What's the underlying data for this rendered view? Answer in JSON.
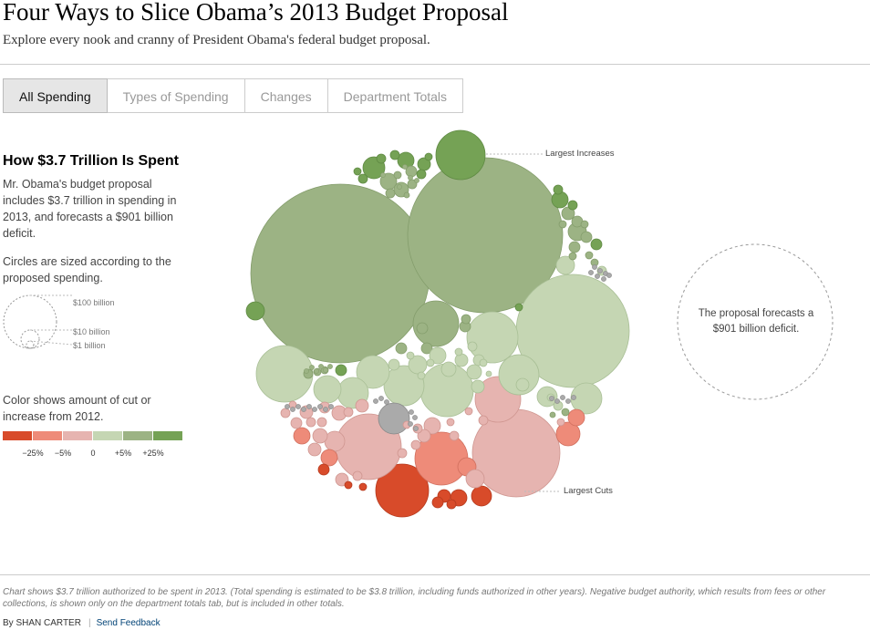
{
  "header": {
    "title": "Four Ways to Slice Obama’s 2013 Budget Proposal",
    "subtitle": "Explore every nook and cranny of President Obama's federal budget proposal."
  },
  "tabs": [
    {
      "label": "All Spending",
      "active": true
    },
    {
      "label": "Types of Spending",
      "active": false
    },
    {
      "label": "Changes",
      "active": false
    },
    {
      "label": "Department Totals",
      "active": false
    }
  ],
  "sidebar": {
    "heading": "How $3.7 Trillion Is Spent",
    "intro": "Mr. Obama's budget proposal includes $3.7 trillion in spending in 2013, and forecasts a $901 billion deficit.",
    "size_note": "Circles are sized according to the proposed spending.",
    "size_legend": [
      "$100 billion",
      "$10 billion",
      "$1 billion"
    ],
    "color_note": "Color shows amount of cut or increase from 2012.",
    "color_scale": [
      "#d84b2a",
      "#ee8b79",
      "#e6b4b0",
      "#c5d6b3",
      "#9cb384",
      "#75a255"
    ],
    "color_ticks": [
      "−25%",
      "−5%",
      "0",
      "+5%",
      "+25%"
    ]
  },
  "annotations": {
    "largest_increases": "Largest Increases",
    "largest_cuts": "Largest Cuts",
    "deficit": "The proposal forecasts a $901 billion deficit."
  },
  "footer": {
    "note": "Chart shows $3.7 trillion authorized to be spent in 2013. (Total spending is estimated to be $3.8 trillion, including funds authorized in other years). Negative budget authority, which results from fees or other collections, is shown only on the department totals tab, but is included in other totals.",
    "byline": "By SHAN CARTER",
    "feedback": "Send Feedback"
  },
  "colors": {
    "dark_green": "#75a255",
    "mid_green": "#9cb384",
    "light_green": "#c5d6b3",
    "light_red": "#e6b4b0",
    "mid_red": "#ee8b79",
    "dark_red": "#d84b2a",
    "gray": "#aaaaaa"
  }
}
